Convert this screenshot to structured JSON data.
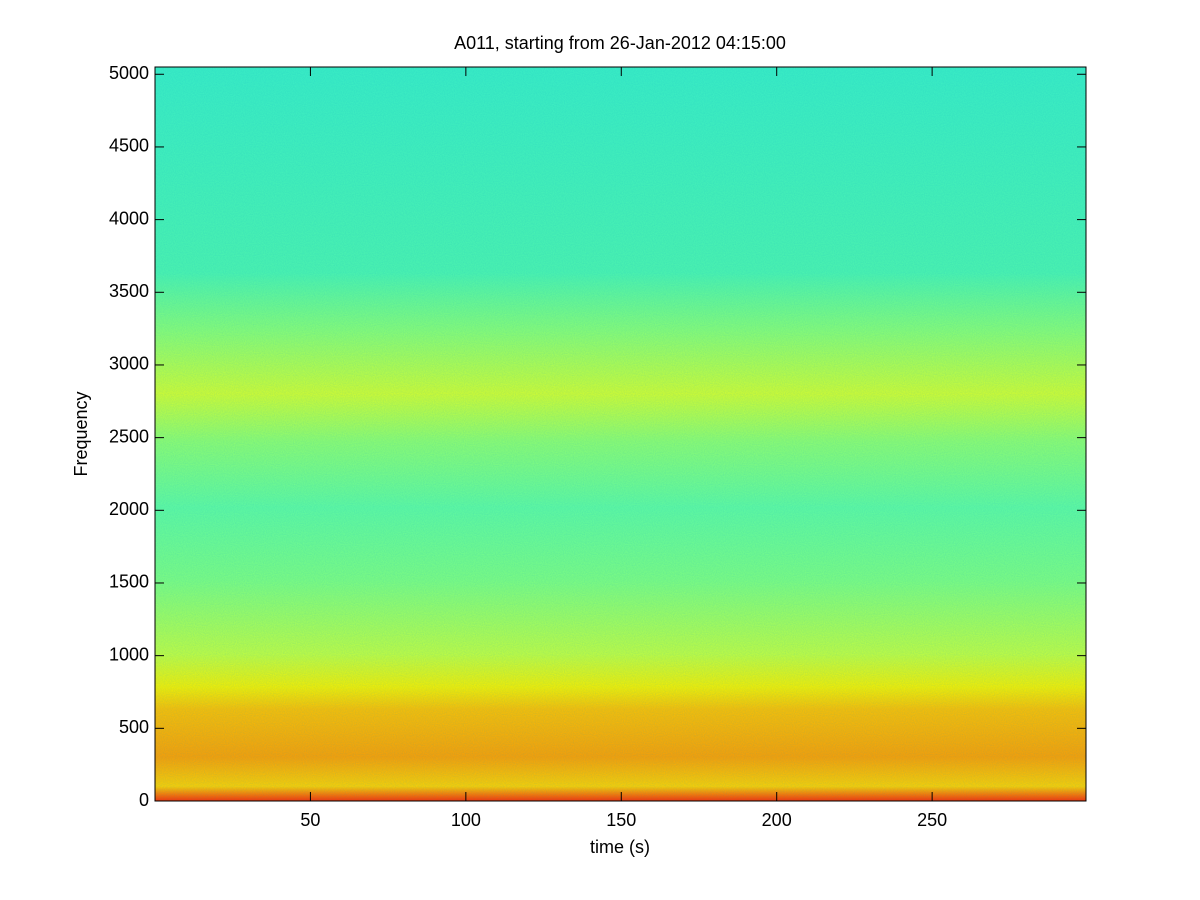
{
  "chart_data": {
    "type": "spectrogram",
    "title": "A011, starting from 26-Jan-2012 04:15:00",
    "xlabel": "time (s)",
    "ylabel": "Frequency",
    "xlim": [
      0,
      299.5
    ],
    "xticks": [
      50,
      100,
      150,
      200,
      250
    ],
    "ylim": [
      0,
      5050
    ],
    "yticks": [
      0,
      500,
      1000,
      1500,
      2000,
      2500,
      3000,
      3500,
      4000,
      4500,
      5000
    ]
  }
}
